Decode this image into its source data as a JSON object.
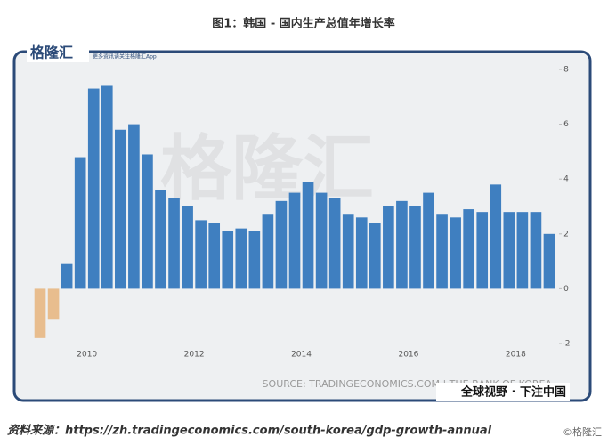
{
  "chart_data": {
    "type": "bar",
    "title": "图1：韩国 - 国内生产总值年增长率",
    "logo": "格隆汇",
    "logo_caption": "更多资讯请关注格隆汇App",
    "watermark": "格隆汇",
    "source": "SOURCE: TRADINGECONOMICS.COM | THE BANK OF KOREA",
    "slogan": "全球视野 · 下注中国",
    "footer": "资料来源：https://zh.tradingeconomics.com/south-korea/gdp-growth-annual",
    "copyright": "©格隆汇",
    "categories": [
      null,
      null,
      null,
      null,
      "2010",
      null,
      null,
      null,
      null,
      null,
      null,
      null,
      "2012",
      null,
      null,
      null,
      null,
      null,
      null,
      null,
      "2014",
      null,
      null,
      null,
      null,
      null,
      null,
      null,
      "2016",
      null,
      null,
      null,
      null,
      null,
      null,
      null,
      "2018",
      null,
      null
    ],
    "values": [
      -1.8,
      -1.1,
      0.9,
      4.8,
      7.3,
      7.4,
      5.8,
      6.0,
      4.9,
      3.6,
      3.3,
      3.0,
      2.5,
      2.4,
      2.1,
      2.2,
      2.1,
      2.7,
      3.2,
      3.5,
      3.9,
      3.5,
      3.3,
      2.7,
      2.6,
      2.4,
      3.0,
      3.2,
      3.0,
      3.5,
      2.7,
      2.6,
      2.9,
      2.8,
      3.8,
      2.8,
      2.8,
      2.8,
      2.0
    ],
    "color": "#3f7fc0",
    "negative_color": "#e8bd8e",
    "ylim": [
      -2,
      8
    ],
    "yticks": [
      -2,
      0,
      2,
      4,
      6,
      8
    ]
  }
}
